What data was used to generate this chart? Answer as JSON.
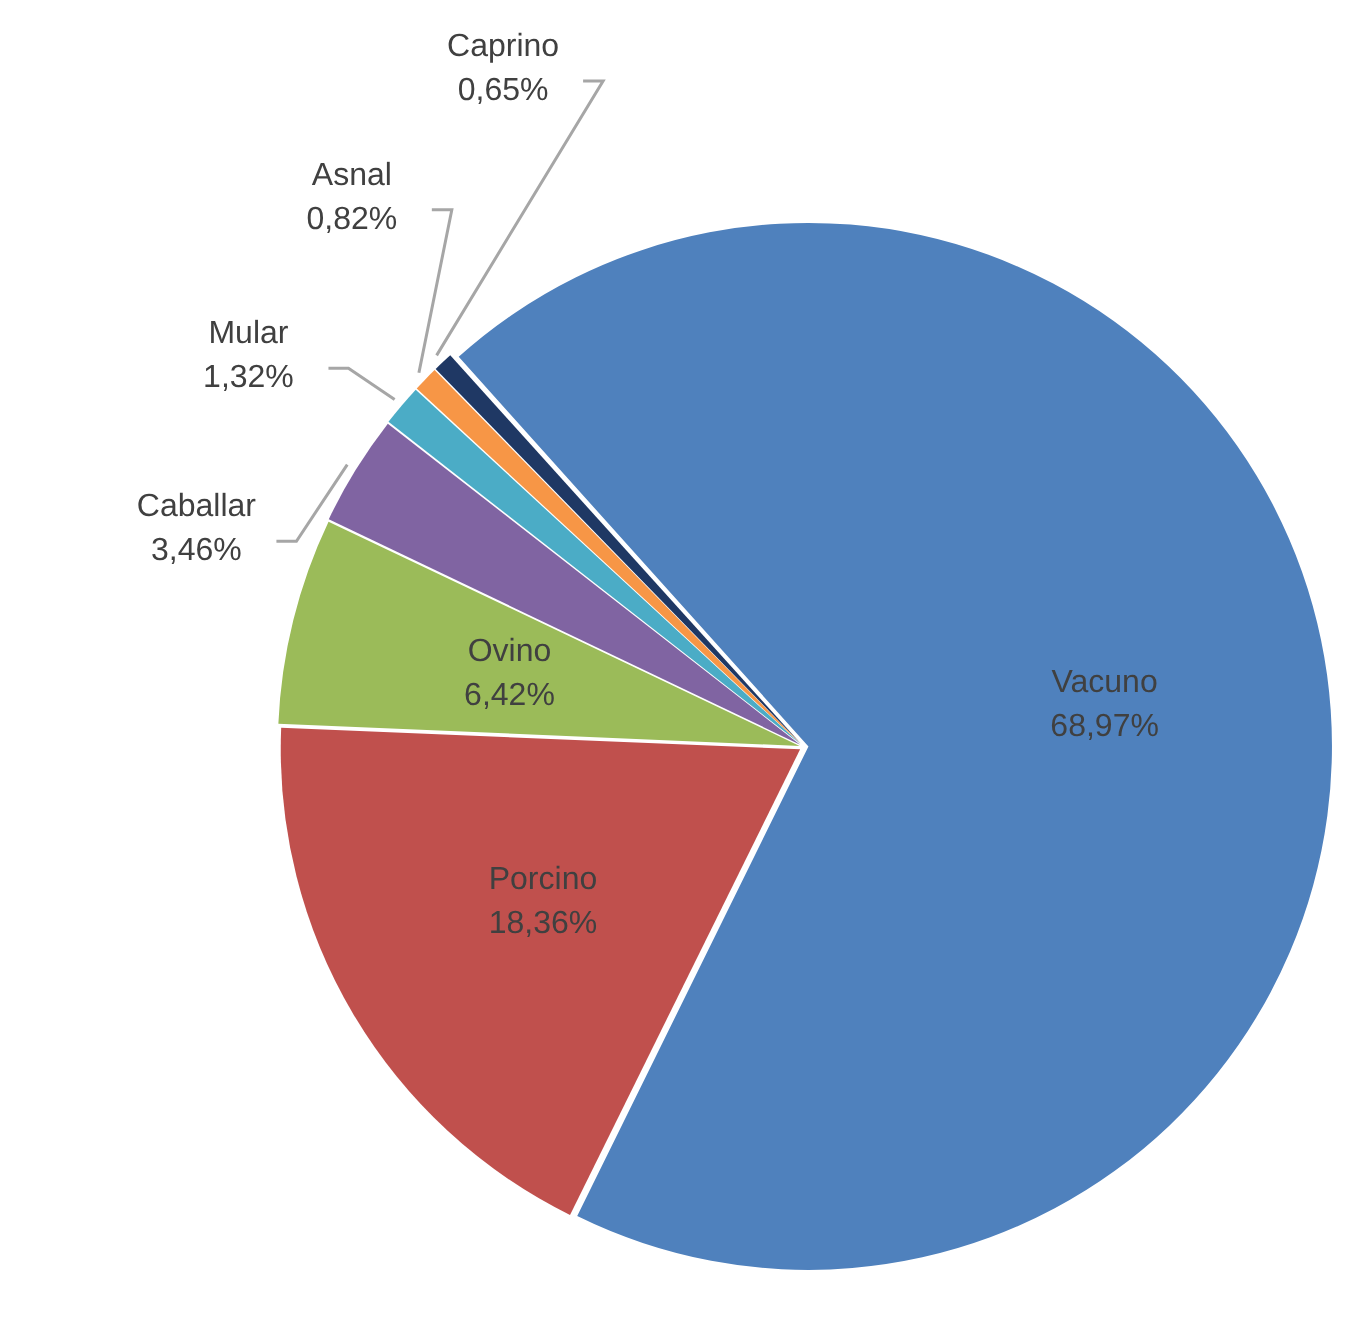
{
  "chart_data": {
    "type": "pie",
    "categories": [
      "Vacuno",
      "Porcino",
      "Ovino",
      "Caballar",
      "Mular",
      "Asnal",
      "Caprino"
    ],
    "values": [
      68.97,
      18.36,
      6.42,
      3.46,
      1.32,
      0.82,
      0.65
    ],
    "colors": [
      "#4f81bd",
      "#c0504d",
      "#9bbb59",
      "#8064a2",
      "#4bacc6",
      "#f79646",
      "#1f3864"
    ],
    "value_labels": [
      "68,97%",
      "18,36%",
      "6,42%",
      "3,46%",
      "1,32%",
      "0,82%",
      "0,65%"
    ],
    "legend": false
  }
}
